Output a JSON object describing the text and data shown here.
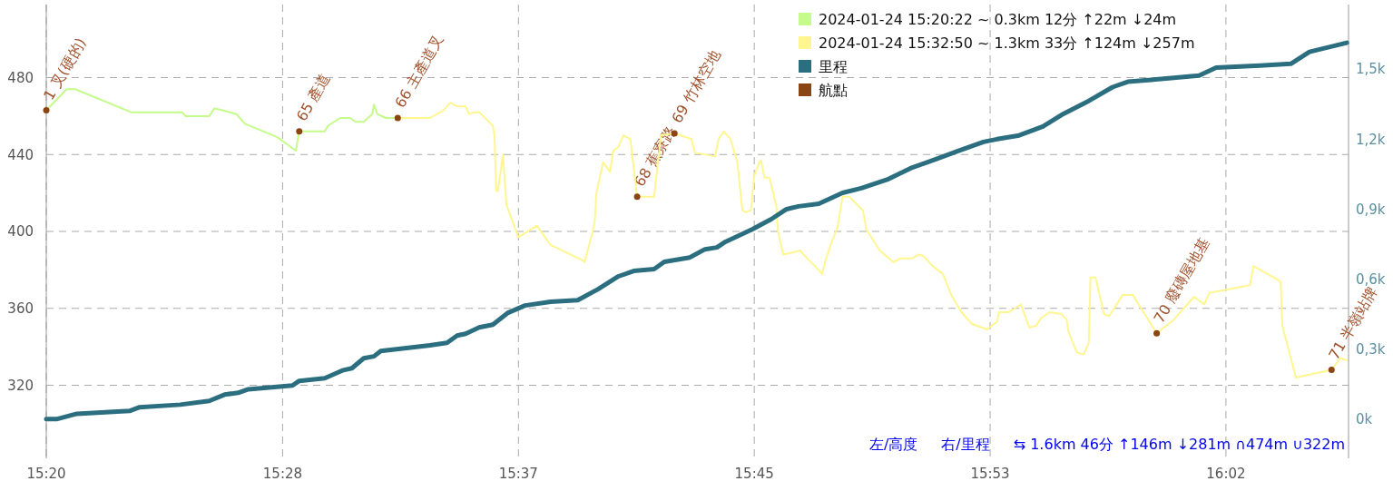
{
  "chart_data": {
    "type": "line",
    "legend": "top right",
    "grid": true,
    "xlim": [
      15.333,
      16.1
    ],
    "xticks": [
      {
        "value": 15.333,
        "label": "15:20"
      },
      {
        "value": 15.4722,
        "label": "15:28"
      },
      {
        "value": 15.6111,
        "label": "15:37"
      },
      {
        "value": 15.75,
        "label": "15:45"
      },
      {
        "value": 15.8889,
        "label": "15:53"
      },
      {
        "value": 16.0278,
        "label": "16:02"
      }
    ],
    "ylim": [
      282,
      518
    ],
    "yticks": [
      320,
      360,
      400,
      440,
      480
    ],
    "y2lim": [
      -168,
      1777
    ],
    "y2ticks": [
      {
        "value": 0,
        "label": "0k"
      },
      {
        "value": 300,
        "label": "0,3k"
      },
      {
        "value": 600,
        "label": "0,6k"
      },
      {
        "value": 900,
        "label": "0,9k"
      },
      {
        "value": 1200,
        "label": "1,2k"
      },
      {
        "value": 1500,
        "label": "1,5k"
      }
    ],
    "series": [
      {
        "name": "2024-01-24 15:20:22 ~ 0.3km 12分 ↑22m ↓24m",
        "color": "#c5fb8b",
        "x": [
          15.333,
          15.345,
          15.35,
          15.383,
          15.413,
          15.415,
          15.429,
          15.432,
          15.437,
          15.445,
          15.45,
          15.469,
          15.48,
          15.482,
          15.497,
          15.499,
          15.506,
          15.512,
          15.515,
          15.52,
          15.525,
          15.526,
          15.528,
          15.533,
          15.54
        ],
        "values": [
          463,
          474,
          474,
          462,
          462,
          460,
          460,
          464,
          463,
          461,
          456,
          449,
          442,
          452,
          452,
          455,
          459,
          459,
          457,
          457,
          461,
          466,
          461,
          459,
          459
        ]
      },
      {
        "name": "2024-01-24 15:32:50 ~ 1.3km 33分 ↑124m ↓257m",
        "color": "#fff68f",
        "x": [
          15.54,
          15.559,
          15.567,
          15.571,
          15.575,
          15.58,
          15.582,
          15.585,
          15.588,
          15.596,
          15.597,
          15.598,
          15.599,
          15.602,
          15.604,
          15.611,
          15.622,
          15.63,
          15.649,
          15.65,
          15.654,
          15.656,
          15.657,
          15.661,
          15.665,
          15.667,
          15.67,
          15.673,
          15.677,
          15.681,
          15.691,
          15.695,
          15.703,
          15.713,
          15.715,
          15.727,
          15.729,
          15.732,
          15.736,
          15.74,
          15.743,
          15.745,
          15.748,
          15.75,
          15.753,
          15.754,
          15.756,
          15.759,
          15.763,
          15.764,
          15.767,
          15.777,
          15.779,
          15.79,
          15.792,
          15.795,
          15.799,
          15.802,
          15.806,
          15.814,
          15.816,
          15.824,
          15.832,
          15.836,
          15.843,
          15.847,
          15.85,
          15.855,
          15.861,
          15.866,
          15.872,
          15.878,
          15.887,
          15.893,
          15.894,
          15.9,
          15.907,
          15.912,
          15.916,
          15.919,
          15.924,
          15.931,
          15.934,
          15.935,
          15.94,
          15.944,
          15.947,
          15.948,
          15.951,
          15.956,
          15.959,
          15.967,
          15.973,
          15.987,
          15.997,
          16.009,
          16.015,
          16.018,
          16.042,
          16.044,
          16.06,
          16.061,
          16.069,
          16.09,
          16.095,
          16.099
        ],
        "values": [
          459,
          459,
          463,
          467,
          465,
          465,
          461,
          462,
          462,
          455,
          450,
          421,
          421,
          440,
          414,
          397,
          403,
          393,
          385,
          384,
          397,
          405,
          420,
          436,
          431,
          442,
          444,
          450,
          448,
          418,
          418,
          450,
          451,
          448,
          441,
          439,
          448,
          452,
          448,
          436,
          411,
          410,
          411,
          429,
          436,
          437,
          428,
          428,
          413,
          400,
          388,
          390,
          388,
          378,
          385,
          393,
          402,
          418,
          418,
          411,
          401,
          390,
          384,
          386,
          386,
          388,
          387,
          382,
          378,
          367,
          358,
          352,
          349,
          353,
          358,
          358,
          362,
          350,
          351,
          355,
          358,
          357,
          354,
          348,
          337,
          336,
          342,
          376,
          376,
          357,
          356,
          367,
          367,
          347,
          354,
          366,
          362,
          368,
          372,
          382,
          374,
          351,
          324,
          328,
          334,
          333
        ]
      },
      {
        "name": "里程",
        "axis": "y2",
        "color": "#2a6e7f",
        "x": [
          15.333,
          15.339,
          15.351,
          15.382,
          15.388,
          15.412,
          15.429,
          15.438,
          15.446,
          15.452,
          15.478,
          15.482,
          15.497,
          15.508,
          15.513,
          15.52,
          15.526,
          15.53,
          15.559,
          15.569,
          15.575,
          15.58,
          15.588,
          15.596,
          15.605,
          15.615,
          15.63,
          15.646,
          15.658,
          15.67,
          15.679,
          15.691,
          15.697,
          15.712,
          15.721,
          15.728,
          15.733,
          15.749,
          15.76,
          15.769,
          15.776,
          15.788,
          15.802,
          15.813,
          15.829,
          15.842,
          15.857,
          15.87,
          15.885,
          15.893,
          15.906,
          15.92,
          15.931,
          15.947,
          15.961,
          15.97,
          15.988,
          16.012,
          16.022,
          16.048,
          16.066,
          16.077,
          16.099
        ],
        "values": [
          0,
          0,
          23,
          35,
          51,
          62,
          78,
          105,
          113,
          128,
          144,
          164,
          175,
          210,
          218,
          261,
          269,
          292,
          316,
          327,
          358,
          366,
          393,
          405,
          456,
          487,
          503,
          510,
          557,
          612,
          635,
          643,
          674,
          693,
          728,
          736,
          760,
          814,
          857,
          900,
          912,
          923,
          970,
          990,
          1029,
          1075,
          1114,
          1149,
          1188,
          1200,
          1216,
          1254,
          1304,
          1364,
          1423,
          1446,
          1457,
          1473,
          1507,
          1515,
          1523,
          1574,
          1613
        ]
      },
      {
        "name": "航點",
        "type": "scatter",
        "marker": "circle",
        "color": "#8b4513",
        "x": [
          15.333,
          15.482,
          15.54,
          15.681,
          15.703,
          15.987,
          16.09
        ],
        "values": [
          463,
          452,
          459,
          418,
          451,
          347,
          328
        ]
      }
    ],
    "annotations": [
      {
        "text": "1 叉(硬的)",
        "x": 15.333,
        "y": 463
      },
      {
        "text": "65 產道",
        "x": 15.482,
        "y": 452
      },
      {
        "text": "66 主產道叉",
        "x": 15.54,
        "y": 459
      },
      {
        "text": "68 蕉寮路",
        "x": 15.681,
        "y": 418
      },
      {
        "text": "69 竹林空地",
        "x": 15.703,
        "y": 451
      },
      {
        "text": "70 廢磚屋地基",
        "x": 15.987,
        "y": 347
      },
      {
        "text": "71 半嶺站牌",
        "x": 16.09,
        "y": 328
      },
      "左/高度",
      "右/里程",
      "⇆ 1.6km 46分 ↑146m ↓281m ∩474m ∪322m"
    ]
  }
}
